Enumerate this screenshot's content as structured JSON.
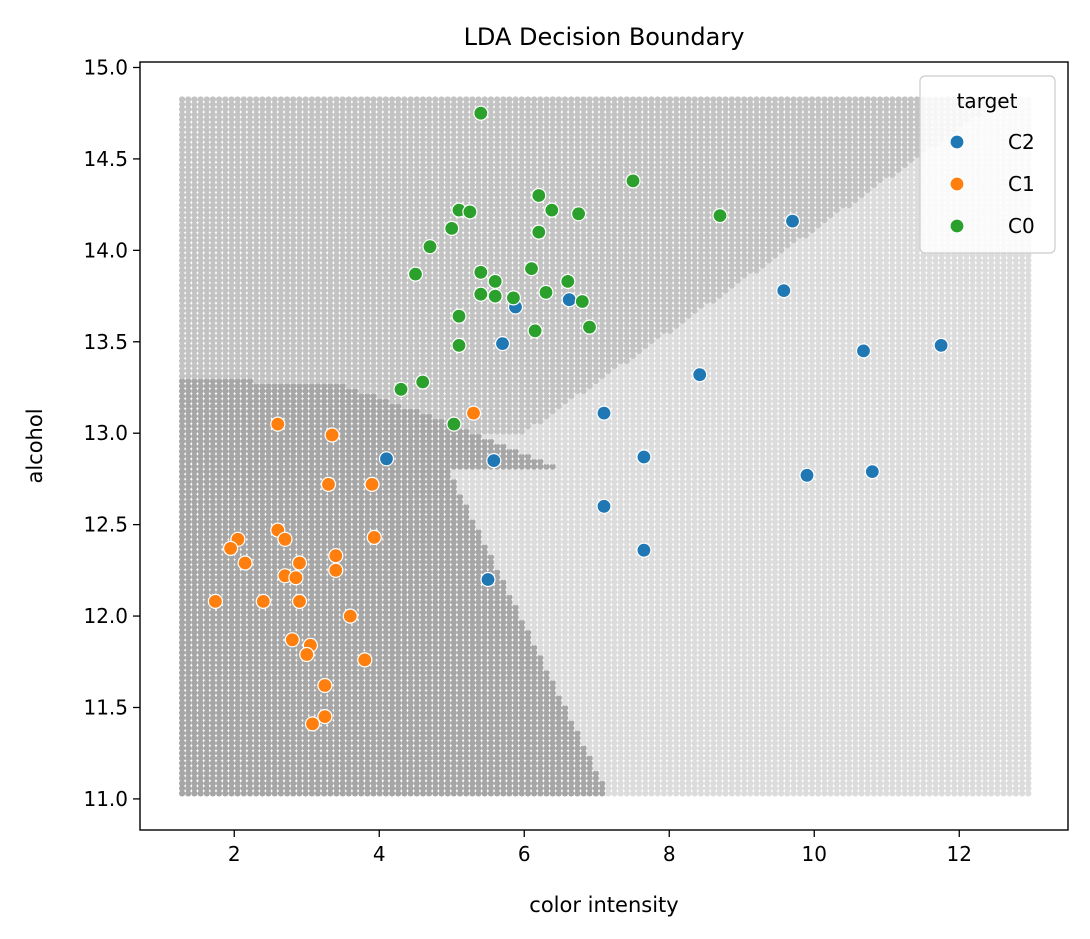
{
  "chart_data": {
    "type": "scatter",
    "title": "LDA Decision Boundary",
    "xlabel": "color intensity",
    "ylabel": "alcohol",
    "xlim": [
      0.7,
      13.5
    ],
    "ylim": [
      10.83,
      15.03
    ],
    "xticks": [
      2,
      4,
      6,
      8,
      10,
      12
    ],
    "xtick_labels": [
      "2",
      "4",
      "6",
      "8",
      "10",
      "12"
    ],
    "yticks": [
      11.0,
      11.5,
      12.0,
      12.5,
      13.0,
      13.5,
      14.0,
      14.5,
      15.0
    ],
    "ytick_labels": [
      "11.0",
      "11.5",
      "12.0",
      "12.5",
      "13.0",
      "13.5",
      "14.0",
      "14.5",
      "15.0"
    ],
    "grid": false,
    "legend": {
      "title": "target",
      "position": "top-right"
    },
    "background_grid": {
      "x_range": [
        1.28,
        13.0
      ],
      "y_range": [
        11.03,
        14.83
      ],
      "x_step": 0.0852,
      "y_step": 0.0275,
      "regions": [
        {
          "class": "C1",
          "color": "#a6a6a6"
        },
        {
          "class": "C0",
          "color": "#c3c3c3"
        },
        {
          "class": "C2",
          "color": "#dcdcdc"
        }
      ]
    },
    "series": [
      {
        "name": "C2",
        "color": "#1f77b4",
        "points": [
          [
            9.7,
            14.16
          ],
          [
            9.58,
            13.78
          ],
          [
            10.68,
            13.45
          ],
          [
            11.75,
            13.48
          ],
          [
            8.42,
            13.32
          ],
          [
            7.1,
            13.11
          ],
          [
            6.62,
            13.73
          ],
          [
            5.88,
            13.69
          ],
          [
            5.7,
            13.49
          ],
          [
            4.1,
            12.86
          ],
          [
            5.58,
            12.85
          ],
          [
            7.65,
            12.87
          ],
          [
            9.9,
            12.77
          ],
          [
            10.8,
            12.79
          ],
          [
            7.1,
            12.6
          ],
          [
            7.65,
            12.36
          ],
          [
            5.5,
            12.2
          ]
        ]
      },
      {
        "name": "C1",
        "color": "#ff7f0e",
        "points": [
          [
            5.3,
            13.11
          ],
          [
            2.6,
            13.05
          ],
          [
            3.35,
            12.99
          ],
          [
            3.3,
            12.72
          ],
          [
            3.9,
            12.72
          ],
          [
            3.93,
            12.43
          ],
          [
            2.6,
            12.47
          ],
          [
            2.7,
            12.42
          ],
          [
            2.05,
            12.42
          ],
          [
            1.95,
            12.37
          ],
          [
            2.15,
            12.29
          ],
          [
            2.9,
            12.29
          ],
          [
            3.4,
            12.33
          ],
          [
            3.4,
            12.25
          ],
          [
            2.7,
            12.22
          ],
          [
            2.85,
            12.21
          ],
          [
            1.74,
            12.08
          ],
          [
            2.4,
            12.08
          ],
          [
            2.9,
            12.08
          ],
          [
            3.6,
            12.0
          ],
          [
            2.8,
            11.87
          ],
          [
            3.05,
            11.84
          ],
          [
            3.0,
            11.79
          ],
          [
            3.8,
            11.76
          ],
          [
            3.25,
            11.62
          ],
          [
            3.25,
            11.45
          ],
          [
            3.08,
            11.41
          ]
        ]
      },
      {
        "name": "C0",
        "color": "#2ca02c",
        "points": [
          [
            5.4,
            14.75
          ],
          [
            7.5,
            14.38
          ],
          [
            6.2,
            14.3
          ],
          [
            5.1,
            14.22
          ],
          [
            5.25,
            14.21
          ],
          [
            6.38,
            14.22
          ],
          [
            6.75,
            14.2
          ],
          [
            8.7,
            14.19
          ],
          [
            5.0,
            14.12
          ],
          [
            6.2,
            14.1
          ],
          [
            4.7,
            14.02
          ],
          [
            4.5,
            13.87
          ],
          [
            5.4,
            13.88
          ],
          [
            6.1,
            13.9
          ],
          [
            5.6,
            13.83
          ],
          [
            6.6,
            13.83
          ],
          [
            5.4,
            13.76
          ],
          [
            5.6,
            13.75
          ],
          [
            5.85,
            13.74
          ],
          [
            6.3,
            13.77
          ],
          [
            6.8,
            13.72
          ],
          [
            5.1,
            13.64
          ],
          [
            6.9,
            13.58
          ],
          [
            6.15,
            13.56
          ],
          [
            5.1,
            13.48
          ],
          [
            4.6,
            13.28
          ],
          [
            4.3,
            13.24
          ],
          [
            5.03,
            13.05
          ]
        ]
      }
    ]
  }
}
